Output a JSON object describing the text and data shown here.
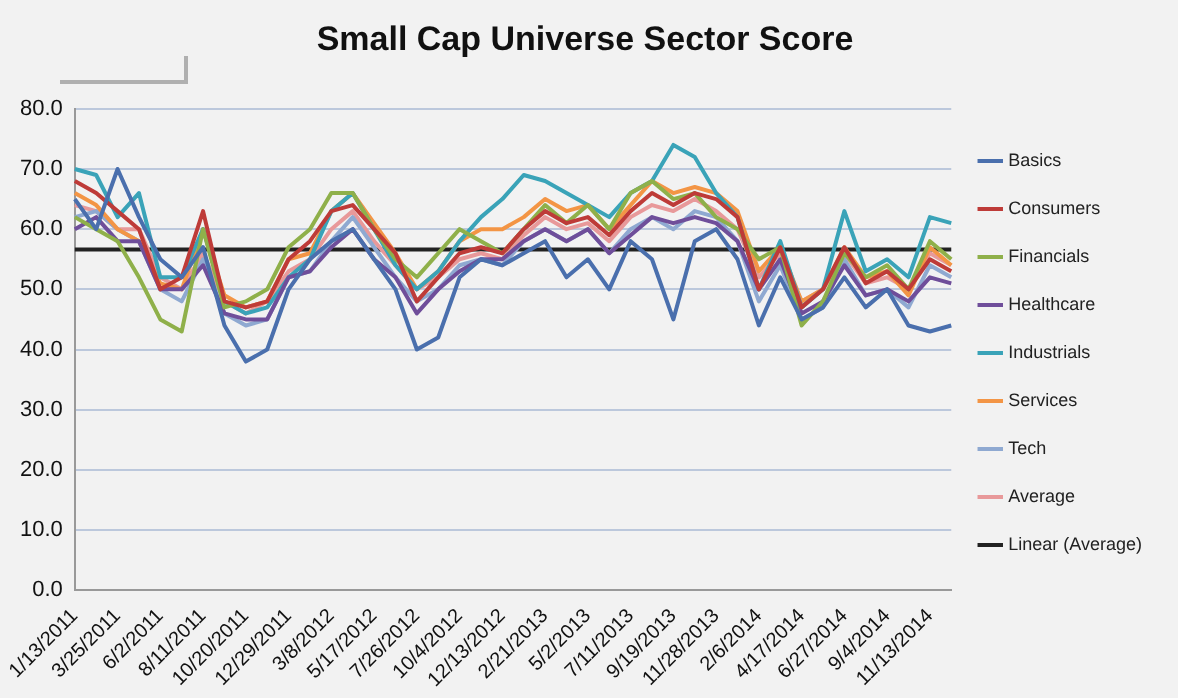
{
  "chart_data": {
    "type": "line",
    "title": "Small Cap Universe Sector Score",
    "categories": [
      "1/13/2011",
      null,
      "3/25/2011",
      null,
      "6/2/2011",
      null,
      "8/11/2011",
      null,
      "10/20/2011",
      null,
      "12/29/2011",
      null,
      "3/8/2012",
      null,
      "5/17/2012",
      null,
      "7/26/2012",
      null,
      "10/4/2012",
      null,
      "12/13/2012",
      null,
      "2/21/2013",
      null,
      "5/2/2013",
      null,
      "7/11/2013",
      null,
      "9/19/2013",
      null,
      "11/28/2013",
      null,
      "2/6/2014",
      null,
      "4/17/2014",
      null,
      "6/27/2014",
      null,
      "9/4/2014",
      null,
      "11/13/2014",
      null
    ],
    "series": [
      {
        "name": "Basics",
        "color": "#4a6fad",
        "values": [
          65,
          60,
          70,
          62,
          55,
          52,
          57,
          44,
          38,
          40,
          50,
          55,
          58,
          60,
          55,
          50,
          40,
          42,
          52,
          55,
          54,
          56,
          58,
          52,
          55,
          50,
          58,
          55,
          45,
          58,
          60,
          55,
          44,
          52,
          45,
          47,
          52,
          47,
          50,
          44,
          43,
          44
        ]
      },
      {
        "name": "Consumers",
        "color": "#be3b38",
        "values": [
          68,
          66,
          63,
          60,
          50,
          52,
          63,
          48,
          47,
          48,
          55,
          58,
          63,
          64,
          60,
          56,
          48,
          52,
          56,
          57,
          56,
          60,
          63,
          61,
          62,
          59,
          63,
          66,
          64,
          66,
          65,
          62,
          50,
          57,
          47,
          50,
          57,
          51,
          53,
          50,
          55,
          53
        ]
      },
      {
        "name": "Financials",
        "color": "#8fb04a",
        "values": [
          62,
          60,
          58,
          52,
          45,
          43,
          60,
          47,
          48,
          50,
          57,
          60,
          66,
          66,
          60,
          55,
          52,
          56,
          60,
          58,
          56,
          60,
          64,
          61,
          64,
          60,
          66,
          68,
          65,
          66,
          62,
          60,
          55,
          57,
          44,
          48,
          56,
          52,
          54,
          50,
          58,
          55
        ]
      },
      {
        "name": "Healthcare",
        "color": "#6f4e9a",
        "values": [
          60,
          62,
          58,
          58,
          50,
          50,
          54,
          46,
          45,
          45,
          52,
          53,
          57,
          60,
          55,
          52,
          46,
          50,
          53,
          55,
          55,
          58,
          60,
          58,
          60,
          56,
          59,
          62,
          61,
          62,
          61,
          58,
          50,
          55,
          46,
          48,
          54,
          49,
          50,
          48,
          52,
          51
        ]
      },
      {
        "name": "Industrials",
        "color": "#3aa3b8",
        "values": [
          70,
          69,
          62,
          66,
          52,
          52,
          60,
          48,
          46,
          47,
          52,
          55,
          63,
          66,
          60,
          54,
          50,
          53,
          58,
          62,
          65,
          69,
          68,
          66,
          64,
          62,
          66,
          68,
          74,
          72,
          66,
          62,
          50,
          58,
          47,
          50,
          63,
          53,
          55,
          52,
          62,
          61
        ]
      },
      {
        "name": "Services",
        "color": "#f39545",
        "values": [
          66,
          64,
          60,
          58,
          51,
          50,
          60,
          49,
          47,
          48,
          55,
          56,
          63,
          66,
          61,
          56,
          50,
          53,
          58,
          60,
          60,
          62,
          65,
          63,
          64,
          60,
          64,
          68,
          66,
          67,
          66,
          63,
          53,
          57,
          48,
          50,
          57,
          52,
          53,
          49,
          57,
          54
        ]
      },
      {
        "name": "Tech",
        "color": "#8fa9d1",
        "values": [
          62,
          63,
          60,
          58,
          50,
          48,
          55,
          46,
          44,
          45,
          52,
          53,
          58,
          62,
          57,
          52,
          48,
          50,
          54,
          55,
          54,
          58,
          60,
          58,
          60,
          56,
          60,
          62,
          60,
          63,
          62,
          58,
          48,
          54,
          45,
          47,
          55,
          49,
          50,
          47,
          54,
          52
        ]
      },
      {
        "name": "Average",
        "color": "#e8999a",
        "values": [
          64,
          63,
          60,
          60,
          52,
          50,
          56,
          48,
          46,
          48,
          53,
          55,
          60,
          63,
          58,
          54,
          50,
          52,
          55,
          56,
          55,
          59,
          62,
          60,
          61,
          58,
          62,
          64,
          63,
          65,
          63,
          60,
          52,
          56,
          48,
          50,
          56,
          51,
          52,
          50,
          56,
          54
        ]
      },
      {
        "name": "Linear (Average)",
        "color": "#222222",
        "values": [
          56.6,
          56.6,
          56.6,
          56.6,
          56.6,
          56.6,
          56.6,
          56.6,
          56.6,
          56.6,
          56.6,
          56.6,
          56.6,
          56.6,
          56.6,
          56.6,
          56.6,
          56.6,
          56.6,
          56.6,
          56.6,
          56.6,
          56.6,
          56.6,
          56.6,
          56.6,
          56.6,
          56.6,
          56.6,
          56.6,
          56.6,
          56.6,
          56.6,
          56.6,
          56.6,
          56.6,
          56.6,
          56.6,
          56.6,
          56.6,
          56.6,
          56.6
        ]
      }
    ],
    "ylim": [
      0,
      80
    ],
    "yticks": [
      {
        "value": 0,
        "label": "0.0"
      },
      {
        "value": 10,
        "label": "10.0"
      },
      {
        "value": 20,
        "label": "20.0"
      },
      {
        "value": 30,
        "label": "30.0"
      },
      {
        "value": 40,
        "label": "40.0"
      },
      {
        "value": 50,
        "label": "50.0"
      },
      {
        "value": 60,
        "label": "60.0"
      },
      {
        "value": 70,
        "label": "70.0"
      },
      {
        "value": 80,
        "label": "80.0"
      }
    ],
    "grid": "y",
    "legend": "right",
    "marker": "none",
    "line_style": "solid"
  }
}
